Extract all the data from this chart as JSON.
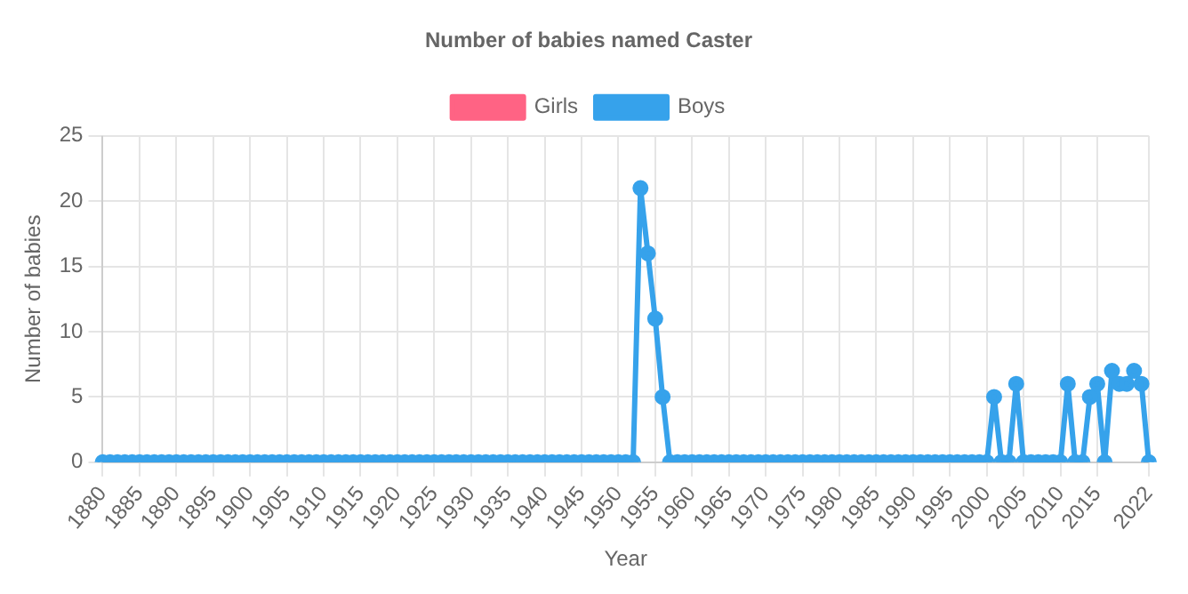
{
  "chart_data": {
    "type": "line",
    "title": "Number of babies named Caster",
    "xlabel": "Year",
    "ylabel": "Number of babies",
    "categories": [
      "1880",
      null,
      null,
      null,
      null,
      "1885",
      null,
      null,
      null,
      null,
      "1890",
      null,
      null,
      null,
      null,
      "1895",
      null,
      null,
      null,
      null,
      "1900",
      null,
      null,
      null,
      null,
      "1905",
      null,
      null,
      null,
      null,
      "1910",
      null,
      null,
      null,
      null,
      "1915",
      null,
      null,
      null,
      null,
      "1920",
      null,
      null,
      null,
      null,
      "1925",
      null,
      null,
      null,
      null,
      "1930",
      null,
      null,
      null,
      null,
      "1935",
      null,
      null,
      null,
      null,
      "1940",
      null,
      null,
      null,
      null,
      "1945",
      null,
      null,
      null,
      null,
      "1950",
      null,
      null,
      null,
      null,
      "1955",
      null,
      null,
      null,
      null,
      "1960",
      null,
      null,
      null,
      null,
      "1965",
      null,
      null,
      null,
      null,
      "1970",
      null,
      null,
      null,
      null,
      "1975",
      null,
      null,
      null,
      null,
      "1980",
      null,
      null,
      null,
      null,
      "1985",
      null,
      null,
      null,
      null,
      "1990",
      null,
      null,
      null,
      null,
      "1995",
      null,
      null,
      null,
      null,
      "2000",
      null,
      null,
      null,
      null,
      "2005",
      null,
      null,
      null,
      null,
      "2010",
      null,
      null,
      null,
      null,
      "2015",
      null,
      null,
      null,
      null,
      null,
      null,
      "2022"
    ],
    "series": [
      {
        "name": "Girls",
        "color": "#ff6384",
        "values": [
          null,
          null,
          null,
          null,
          null,
          null,
          null,
          null,
          null,
          null,
          null,
          null,
          null,
          null,
          null,
          null,
          null,
          null,
          null,
          null,
          null,
          null,
          null,
          null,
          null,
          null,
          null,
          null,
          null,
          null,
          null,
          null,
          null,
          null,
          null,
          null,
          null,
          null,
          null,
          null,
          null,
          null,
          null,
          null,
          null,
          null,
          null,
          null,
          null,
          null,
          null,
          null,
          null,
          null,
          null,
          null,
          null,
          null,
          null,
          null,
          null,
          null,
          null,
          null,
          null,
          null,
          null,
          null,
          null,
          null,
          null,
          null,
          null,
          null,
          null,
          null,
          null,
          null,
          null,
          null,
          null,
          null,
          null,
          null,
          null,
          null,
          null,
          null,
          null,
          null,
          null,
          null,
          null,
          null,
          null,
          null,
          null,
          null,
          null,
          null,
          null,
          null,
          null,
          null,
          null,
          null,
          null,
          null,
          null,
          null,
          null,
          null,
          null,
          null,
          null,
          null,
          null,
          null,
          null,
          null,
          null,
          null,
          null,
          null,
          null,
          null,
          null,
          null,
          null,
          null,
          null,
          null,
          null,
          null,
          null,
          null,
          null,
          null,
          null,
          null,
          null,
          null,
          null
        ]
      },
      {
        "name": "Boys",
        "color": "#36a2eb",
        "values": [
          0,
          0,
          0,
          0,
          0,
          0,
          0,
          0,
          0,
          0,
          0,
          0,
          0,
          0,
          0,
          0,
          0,
          0,
          0,
          0,
          0,
          0,
          0,
          0,
          0,
          0,
          0,
          0,
          0,
          0,
          0,
          0,
          0,
          0,
          0,
          0,
          0,
          0,
          0,
          0,
          0,
          0,
          0,
          0,
          0,
          0,
          0,
          0,
          0,
          0,
          0,
          0,
          0,
          0,
          0,
          0,
          0,
          0,
          0,
          0,
          0,
          0,
          0,
          0,
          0,
          0,
          0,
          0,
          0,
          0,
          0,
          0,
          0,
          21,
          16,
          11,
          5,
          0,
          0,
          0,
          0,
          0,
          0,
          0,
          0,
          0,
          0,
          0,
          0,
          0,
          0,
          0,
          0,
          0,
          0,
          0,
          0,
          0,
          0,
          0,
          0,
          0,
          0,
          0,
          0,
          0,
          0,
          0,
          0,
          0,
          0,
          0,
          0,
          0,
          0,
          0,
          0,
          0,
          0,
          0,
          0,
          5,
          0,
          0,
          6,
          0,
          0,
          0,
          0,
          0,
          0,
          6,
          0,
          0,
          5,
          6,
          0,
          7,
          6,
          6,
          7,
          6,
          0
        ]
      }
    ],
    "ylim": [
      0,
      25
    ],
    "yticks": [
      0,
      5,
      10,
      15,
      20,
      25
    ],
    "grid": true,
    "legend": "top",
    "marker": "circle",
    "line_style": "solid"
  }
}
